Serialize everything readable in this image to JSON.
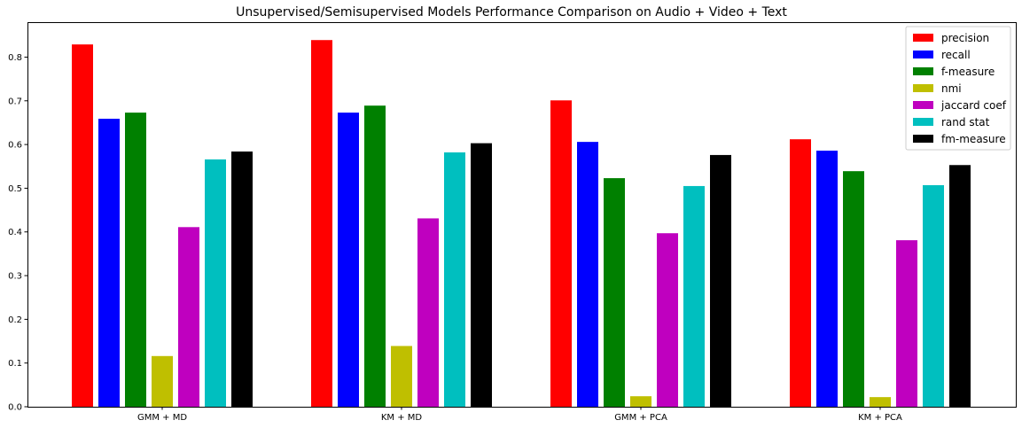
{
  "chart_data": {
    "type": "bar",
    "title": "Unsupervised/Semisupervised Models Performance Comparison on Audio + Video + Text",
    "xlabel": "",
    "ylabel": "",
    "categories": [
      "GMM + MD",
      "KM + MD",
      "GMM + PCA",
      "KM + PCA"
    ],
    "ylim": [
      0,
      0.88
    ],
    "yticks": [
      "0.0",
      "0.1",
      "0.2",
      "0.3",
      "0.4",
      "0.5",
      "0.6",
      "0.7",
      "0.8"
    ],
    "grid": false,
    "legend_position": "top-right",
    "series": [
      {
        "name": "precision",
        "color": "#ff0000",
        "values": [
          0.829,
          0.839,
          0.701,
          0.612
        ]
      },
      {
        "name": "recall",
        "color": "#0000ff",
        "values": [
          0.659,
          0.673,
          0.606,
          0.586
        ]
      },
      {
        "name": "f-measure",
        "color": "#008000",
        "values": [
          0.673,
          0.689,
          0.523,
          0.539
        ]
      },
      {
        "name": "nmi",
        "color": "#bfbf00",
        "values": [
          0.116,
          0.139,
          0.024,
          0.022
        ]
      },
      {
        "name": "jaccard coef",
        "color": "#bf00bf",
        "values": [
          0.411,
          0.431,
          0.397,
          0.381
        ]
      },
      {
        "name": "rand stat",
        "color": "#00bfbf",
        "values": [
          0.566,
          0.582,
          0.505,
          0.507
        ]
      },
      {
        "name": "fm-measure",
        "color": "#000000",
        "values": [
          0.584,
          0.603,
          0.576,
          0.553
        ]
      }
    ]
  }
}
